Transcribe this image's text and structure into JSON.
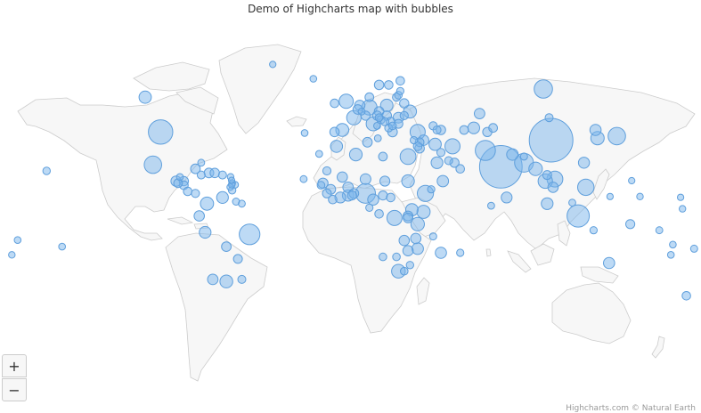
{
  "title": "Demo of Highcharts map with bubbles",
  "credits": "Highcharts.com © Natural Earth",
  "zoom": {
    "in_label": "+",
    "out_label": "−"
  },
  "colors": {
    "bubble_fill": "#7cb5ec",
    "bubble_stroke": "#5f9fdc",
    "land": "#f7f7f7",
    "border": "#cccccc"
  },
  "chart_data": {
    "type": "bubble-map",
    "series": [
      {
        "name": "",
        "points": [
          {
            "lon": 104,
            "lat": 35,
            "v": 1390
          },
          {
            "lon": 78,
            "lat": 22,
            "v": 1310
          },
          {
            "lon": -98,
            "lat": 39,
            "v": 325
          },
          {
            "lon": 118,
            "lat": -2,
            "v": 258
          },
          {
            "lon": -52,
            "lat": -11,
            "v": 206
          },
          {
            "lon": 70,
            "lat": 30,
            "v": 193
          },
          {
            "lon": 8,
            "lat": 9,
            "v": 183
          },
          {
            "lon": 90,
            "lat": 24,
            "v": 160
          },
          {
            "lon": 100,
            "lat": 60,
            "v": 146
          },
          {
            "lon": -102,
            "lat": 23,
            "v": 127
          },
          {
            "lon": 138,
            "lat": 37,
            "v": 127
          },
          {
            "lon": 39,
            "lat": 9,
            "v": 100
          },
          {
            "lon": 122,
            "lat": 12,
            "v": 101
          },
          {
            "lon": 30,
            "lat": 27,
            "v": 92
          },
          {
            "lon": 106,
            "lat": 16,
            "v": 92
          },
          {
            "lon": 23,
            "lat": -3,
            "v": 79
          },
          {
            "lon": 53,
            "lat": 32,
            "v": 79
          },
          {
            "lon": 35,
            "lat": 39,
            "v": 79
          },
          {
            "lon": 10,
            "lat": 51,
            "v": 81
          },
          {
            "lon": 101,
            "lat": 15,
            "v": 68
          },
          {
            "lon": -2,
            "lat": 54,
            "v": 65
          },
          {
            "lon": 2,
            "lat": 46,
            "v": 66
          },
          {
            "lon": 12,
            "lat": 43,
            "v": 60
          },
          {
            "lon": 25,
            "lat": -29,
            "v": 55
          },
          {
            "lon": 35,
            "lat": -6,
            "v": 53
          },
          {
            "lon": 96,
            "lat": 21,
            "v": 54
          },
          {
            "lon": 38,
            "lat": 0,
            "v": 48
          },
          {
            "lon": 128,
            "lat": 36,
            "v": 51
          },
          {
            "lon": -74,
            "lat": 4,
            "v": 48
          },
          {
            "lon": -4,
            "lat": 40,
            "v": 46
          },
          {
            "lon": 32,
            "lat": 1,
            "v": 39
          },
          {
            "lon": -64,
            "lat": -34,
            "v": 43
          },
          {
            "lon": 3,
            "lat": 28,
            "v": 40
          },
          {
            "lon": 30,
            "lat": 15,
            "v": 40
          },
          {
            "lon": 31,
            "lat": 49,
            "v": 45
          },
          {
            "lon": 44,
            "lat": 33,
            "v": 36
          },
          {
            "lon": 19,
            "lat": 52,
            "v": 38
          },
          {
            "lon": -7,
            "lat": 32,
            "v": 34
          },
          {
            "lon": -106,
            "lat": 56,
            "v": 36
          },
          {
            "lon": 45,
            "lat": 24,
            "v": 31
          },
          {
            "lon": 64,
            "lat": 41,
            "v": 31
          },
          {
            "lon": -75,
            "lat": -10,
            "v": 31
          },
          {
            "lon": 102,
            "lat": 4,
            "v": 30
          },
          {
            "lon": -66,
            "lat": 7,
            "v": 31
          },
          {
            "lon": 35,
            "lat": -18,
            "v": 28
          },
          {
            "lon": -1,
            "lat": 8,
            "v": 27
          },
          {
            "lon": 48,
            "lat": 15,
            "v": 26
          },
          {
            "lon": 84,
            "lat": 28,
            "v": 28
          },
          {
            "lon": 47,
            "lat": -20,
            "v": 24
          },
          {
            "lon": 12,
            "lat": 6,
            "v": 23
          },
          {
            "lon": -5,
            "lat": 7,
            "v": 22
          },
          {
            "lon": 127,
            "lat": 40,
            "v": 25
          },
          {
            "lon": 134,
            "lat": -25,
            "v": 24
          },
          {
            "lon": 121,
            "lat": 24,
            "v": 23
          },
          {
            "lon": 81,
            "lat": 7,
            "v": 21
          },
          {
            "lon": -1,
            "lat": 12,
            "v": 18
          },
          {
            "lon": -4,
            "lat": 17,
            "v": 17
          },
          {
            "lon": -71,
            "lat": -33,
            "v": 18
          },
          {
            "lon": 25,
            "lat": 46,
            "v": 20
          },
          {
            "lon": 34,
            "lat": -13,
            "v": 17
          },
          {
            "lon": 28,
            "lat": -14,
            "v": 16
          },
          {
            "lon": 38,
            "lat": 35,
            "v": 18
          },
          {
            "lon": -90,
            "lat": 15,
            "v": 16
          },
          {
            "lon": 8,
            "lat": 16,
            "v": 20
          },
          {
            "lon": -14,
            "lat": 14,
            "v": 15
          },
          {
            "lon": 5,
            "lat": 52,
            "v": 17
          },
          {
            "lon": 67,
            "lat": 48,
            "v": 18
          },
          {
            "lon": -78,
            "lat": -2,
            "v": 16
          },
          {
            "lon": 105,
            "lat": 12,
            "v": 16
          },
          {
            "lon": 18,
            "lat": 15,
            "v": 14
          },
          {
            "lon": 30,
            "lat": -19,
            "v": 16
          },
          {
            "lon": -10,
            "lat": 11,
            "v": 12
          },
          {
            "lon": 30,
            "lat": -2,
            "v": 12
          },
          {
            "lon": 2,
            "lat": 9,
            "v": 11
          },
          {
            "lon": -73,
            "lat": 19,
            "v": 11
          },
          {
            "lon": -80,
            "lat": 21,
            "v": 11
          },
          {
            "lon": 9,
            "lat": 34,
            "v": 11
          },
          {
            "lon": 30,
            "lat": -3,
            "v": 11
          },
          {
            "lon": 4,
            "lat": 50,
            "v": 11
          },
          {
            "lon": -64,
            "lat": -17,
            "v": 11
          },
          {
            "lon": -70,
            "lat": 19,
            "v": 10
          },
          {
            "lon": 22,
            "lat": 39,
            "v": 11
          },
          {
            "lon": 15,
            "lat": 49,
            "v": 11
          },
          {
            "lon": -8,
            "lat": 39,
            "v": 10
          },
          {
            "lon": 15,
            "lat": 62,
            "v": 10
          },
          {
            "lon": 47,
            "lat": 40,
            "v": 10
          },
          {
            "lon": 19,
            "lat": 47,
            "v": 10
          },
          {
            "lon": 28,
            "lat": 53,
            "v": 9
          },
          {
            "lon": 36,
            "lat": 31,
            "v": 10
          },
          {
            "lon": 54,
            "lat": 24,
            "v": 9
          },
          {
            "lon": -86,
            "lat": 15,
            "v": 9
          },
          {
            "lon": 71,
            "lat": 39,
            "v": 9
          },
          {
            "lon": 8,
            "lat": 47,
            "v": 9
          },
          {
            "lon": 14,
            "lat": 47,
            "v": 9
          },
          {
            "lon": 1,
            "lat": 8,
            "v": 8
          },
          {
            "lon": 21,
            "lat": 44,
            "v": 7
          },
          {
            "lon": 145,
            "lat": -6,
            "v": 8
          },
          {
            "lon": -58,
            "lat": -23,
            "v": 7
          },
          {
            "lon": 17,
            "lat": 8,
            "v": 8
          },
          {
            "lon": 74,
            "lat": 41,
            "v": 6
          },
          {
            "lon": -86,
            "lat": 13,
            "v": 6
          },
          {
            "lon": -89,
            "lat": 14,
            "v": 6
          },
          {
            "lon": 25,
            "lat": 43,
            "v": 7
          },
          {
            "lon": -12,
            "lat": 9,
            "v": 7
          },
          {
            "lon": 102,
            "lat": 18,
            "v": 7
          },
          {
            "lon": 17,
            "lat": 27,
            "v": 6
          },
          {
            "lon": 36,
            "lat": 34,
            "v": 6
          },
          {
            "lon": 59,
            "lat": 40,
            "v": 6
          },
          {
            "lon": 10,
            "lat": 56,
            "v": 6
          },
          {
            "lon": 26,
            "lat": 64,
            "v": 5
          },
          {
            "lon": 15,
            "lat": -1,
            "v": 5
          },
          {
            "lon": 20,
            "lat": 62,
            "v": 5
          },
          {
            "lon": 174,
            "lat": -41,
            "v": 5
          },
          {
            "lon": -84,
            "lat": 10,
            "v": 5
          },
          {
            "lon": 57,
            "lat": 21,
            "v": 5
          },
          {
            "lon": -8,
            "lat": 53,
            "v": 5
          },
          {
            "lon": -9,
            "lat": 6,
            "v": 5
          },
          {
            "lon": 35,
            "lat": 32,
            "v": 5
          },
          {
            "lon": 21,
            "lat": 7,
            "v": 5
          },
          {
            "lon": -12,
            "lat": 20,
            "v": 4
          },
          {
            "lon": -80,
            "lat": 9,
            "v": 4
          },
          {
            "lon": 16,
            "lat": 45,
            "v": 4
          },
          {
            "lon": 28,
            "lat": 47,
            "v": 4
          },
          {
            "lon": 43,
            "lat": 42,
            "v": 4
          },
          {
            "lon": -66,
            "lat": 18,
            "v": 3
          },
          {
            "lon": 103,
            "lat": 46,
            "v": 3
          },
          {
            "lon": 45,
            "lat": 40,
            "v": 3
          },
          {
            "lon": -56,
            "lat": -33,
            "v": 3
          },
          {
            "lon": 18,
            "lat": 44,
            "v": 3
          },
          {
            "lon": 20,
            "lat": 41,
            "v": 3
          },
          {
            "lon": 24,
            "lat": 56,
            "v": 3
          },
          {
            "lon": -77,
            "lat": 18,
            "v": 3
          },
          {
            "lon": 47,
            "lat": 29,
            "v": 4
          },
          {
            "lon": 17,
            "lat": -22,
            "v": 2
          },
          {
            "lon": 51,
            "lat": 25,
            "v": 3
          },
          {
            "lon": 24,
            "lat": -22,
            "v": 2
          },
          {
            "lon": -15,
            "lat": 13,
            "v": 2
          },
          {
            "lon": 28,
            "lat": -29,
            "v": 2
          },
          {
            "lon": 22,
            "lat": 42,
            "v": 2
          },
          {
            "lon": 15,
            "lat": 46,
            "v": 2
          },
          {
            "lon": 25,
            "lat": 57,
            "v": 2
          },
          {
            "lon": 10,
            "lat": 2,
            "v": 1.3
          },
          {
            "lon": -61,
            "lat": 10.5,
            "v": 1.4
          },
          {
            "lon": 57,
            "lat": -20,
            "v": 1.3
          },
          {
            "lon": 26,
            "lat": 59,
            "v": 1.3
          },
          {
            "lon": 31,
            "lat": -26,
            "v": 1.4
          },
          {
            "lon": 126,
            "lat": -9,
            "v": 1.3
          },
          {
            "lon": 42,
            "lat": 11,
            "v": 1
          },
          {
            "lon": 33,
            "lat": 35,
            "v": 1.2
          },
          {
            "lon": 178,
            "lat": -18,
            "v": 0.9
          },
          {
            "lon": 43,
            "lat": -12,
            "v": 0.8
          },
          {
            "lon": 90,
            "lat": 27,
            "v": 0.8
          },
          {
            "lon": -59,
            "lat": 5,
            "v": 0.8
          },
          {
            "lon": 160,
            "lat": -9,
            "v": 0.6
          },
          {
            "lon": -56,
            "lat": 4,
            "v": 0.6
          },
          {
            "lon": 6,
            "lat": 49,
            "v": 0.6
          },
          {
            "lon": -24,
            "lat": 16,
            "v": 0.5
          },
          {
            "lon": 14,
            "lat": 42,
            "v": 0.6
          },
          {
            "lon": 115,
            "lat": 4.5,
            "v": 0.4
          },
          {
            "lon": 73,
            "lat": 3,
            "v": 0.4
          },
          {
            "lon": -88,
            "lat": 17,
            "v": 0.4
          },
          {
            "lon": -77,
            "lat": 24,
            "v": 0.4
          },
          {
            "lon": 14.4,
            "lat": 35.9,
            "v": 0.4
          },
          {
            "lon": -19,
            "lat": 65,
            "v": 0.3
          },
          {
            "lon": 167,
            "lat": -16,
            "v": 0.3
          },
          {
            "lon": -59.5,
            "lat": 13.2,
            "v": 0.3
          },
          {
            "lon": 166,
            "lat": -21,
            "v": 0.3
          },
          {
            "lon": -149,
            "lat": -17,
            "v": 0.3
          },
          {
            "lon": -172,
            "lat": -13.8,
            "v": 0.2
          },
          {
            "lon": -61,
            "lat": 14,
            "v": 0.2
          },
          {
            "lon": -40,
            "lat": 72,
            "v": 0.06
          },
          {
            "lon": -157,
            "lat": 20,
            "v": 1.4
          },
          {
            "lon": -175,
            "lat": -21,
            "v": 0.1
          },
          {
            "lon": 172,
            "lat": 1.5,
            "v": 0.1
          },
          {
            "lon": -61.3,
            "lat": 15.4,
            "v": 0.07
          },
          {
            "lon": -61.8,
            "lat": 17.1,
            "v": 0.1
          },
          {
            "lon": 150,
            "lat": 7.5,
            "v": 0.1
          },
          {
            "lon": -62,
            "lat": 12.1,
            "v": 0.1
          },
          {
            "lon": -61.2,
            "lat": 13.2,
            "v": 0.1
          },
          {
            "lon": -23.5,
            "lat": 38.5,
            "v": 0.25
          },
          {
            "lon": -16,
            "lat": 28.3,
            "v": 0.5
          },
          {
            "lon": 145.7,
            "lat": 15.2,
            "v": 0.05
          },
          {
            "lon": 171,
            "lat": 7.1,
            "v": 0.05
          },
          {
            "lon": 134.5,
            "lat": 7.5,
            "v": 0.02
          }
        ]
      }
    ]
  }
}
